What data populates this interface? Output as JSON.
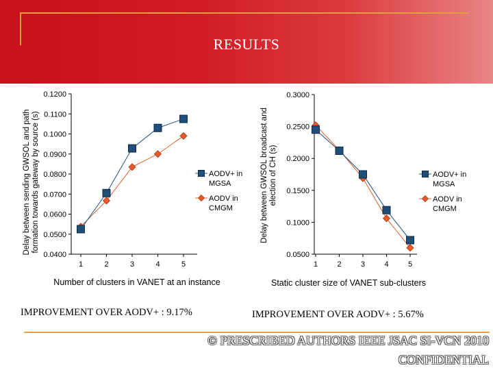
{
  "slide": {
    "title": "RESULTS",
    "caption_left": "IMPROVEMENT OVER AODV+ : 9.17%",
    "caption_right": "IMPROVEMENT OVER AODV+ : 5.67%",
    "footer_line1": "© PRESCRIBED AUTHORS IEEE JSAC SI-VCN 2010",
    "footer_line2": "CONFIDENTIAL",
    "colors": {
      "banner": "#c8111a",
      "rule": "#e0a040"
    }
  },
  "chart_data": [
    {
      "type": "line",
      "xlabel": "Number of clusters in VANET at an instance",
      "ylabel_line1": "Delay between sending GWSOL and path",
      "ylabel_line2": "formation towards gateway by source (s)",
      "x": [
        1,
        2,
        3,
        4,
        5
      ],
      "ylim": [
        0.04,
        0.12
      ],
      "yticks": [
        "0.0400",
        "0.0500",
        "0.0600",
        "0.0700",
        "0.0800",
        "0.0900",
        "0.1000",
        "0.1100",
        "0.1200"
      ],
      "grid": false,
      "legend_position": "right",
      "series": [
        {
          "name_line1": "AODV+ in",
          "name_line2": "MGSA",
          "color": "#1f4e79",
          "marker": "square",
          "values": [
            0.0525,
            0.0705,
            0.0928,
            0.103,
            0.1075
          ]
        },
        {
          "name_line1": "AODV in",
          "name_line2": "CMGM",
          "color": "#e0622a",
          "marker": "diamond",
          "values": [
            0.0538,
            0.0667,
            0.0835,
            0.09,
            0.099
          ]
        }
      ]
    },
    {
      "type": "line",
      "xlabel": "Static cluster size of VANET sub-clusters",
      "ylabel_line1": "Delay between GWSOL broadcast and",
      "ylabel_line2": "election of CH (s)",
      "x": [
        1,
        2,
        3,
        4,
        5
      ],
      "ylim": [
        0.05,
        0.3
      ],
      "yticks": [
        "0.0500",
        "0.1000",
        "0.1500",
        "0.2000",
        "0.2500",
        "0.3000"
      ],
      "grid": false,
      "legend_position": "right",
      "series": [
        {
          "name_line1": "AODV+ in",
          "name_line2": "MGSA",
          "color": "#1f4e79",
          "marker": "square",
          "values": [
            0.245,
            0.212,
            0.175,
            0.119,
            0.072
          ]
        },
        {
          "name_line1": "AODV in",
          "name_line2": "CMGM",
          "color": "#e0622a",
          "marker": "diamond",
          "values": [
            0.252,
            0.213,
            0.169,
            0.106,
            0.06
          ]
        }
      ]
    }
  ]
}
